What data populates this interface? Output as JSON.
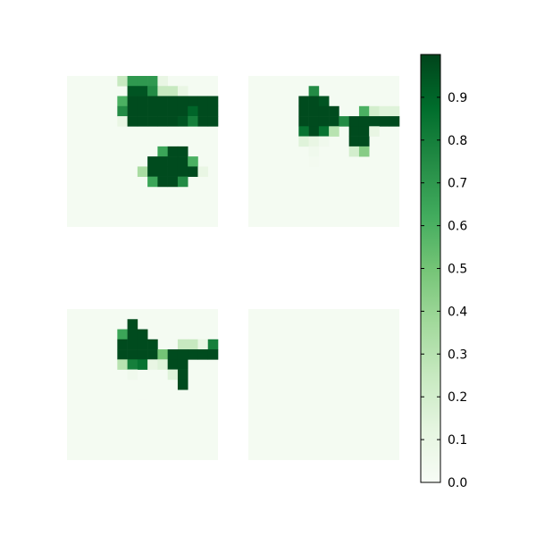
{
  "chart_data": {
    "type": "heatmap",
    "colormap": "Greens",
    "colorbar": {
      "vmin": 0.0,
      "vmax": 1.0,
      "tick_labels": [
        "0.0",
        "0.1",
        "0.2",
        "0.3",
        "0.4",
        "0.5",
        "0.6",
        "0.7",
        "0.8",
        "0.9"
      ]
    },
    "background_value": 0.02,
    "panels": [
      {
        "name": "top-left",
        "cells": [
          [
            0,
            5,
            0.25
          ],
          [
            0,
            6,
            0.7
          ],
          [
            0,
            7,
            0.7
          ],
          [
            0,
            8,
            0.7
          ],
          [
            0,
            9,
            0.1
          ],
          [
            1,
            6,
            0.95
          ],
          [
            1,
            7,
            0.95
          ],
          [
            1,
            8,
            0.75
          ],
          [
            1,
            9,
            0.25
          ],
          [
            1,
            10,
            0.25
          ],
          [
            1,
            11,
            0.1
          ],
          [
            2,
            5,
            0.6
          ],
          [
            2,
            6,
            0.98
          ],
          [
            2,
            7,
            0.98
          ],
          [
            2,
            8,
            0.98
          ],
          [
            2,
            9,
            0.98
          ],
          [
            2,
            10,
            0.98
          ],
          [
            2,
            11,
            0.98
          ],
          [
            2,
            12,
            0.98
          ],
          [
            2,
            13,
            0.98
          ],
          [
            2,
            14,
            0.98
          ],
          [
            3,
            5,
            0.75
          ],
          [
            3,
            6,
            0.98
          ],
          [
            3,
            7,
            0.98
          ],
          [
            3,
            8,
            0.98
          ],
          [
            3,
            9,
            0.98
          ],
          [
            3,
            10,
            0.98
          ],
          [
            3,
            11,
            0.98
          ],
          [
            3,
            12,
            0.9
          ],
          [
            3,
            13,
            0.98
          ],
          [
            3,
            14,
            0.98
          ],
          [
            4,
            5,
            0.1
          ],
          [
            4,
            6,
            0.98
          ],
          [
            4,
            7,
            0.98
          ],
          [
            4,
            8,
            0.98
          ],
          [
            4,
            9,
            0.98
          ],
          [
            4,
            10,
            0.98
          ],
          [
            4,
            11,
            0.95
          ],
          [
            4,
            12,
            0.8
          ],
          [
            4,
            13,
            0.98
          ],
          [
            4,
            14,
            0.98
          ],
          [
            7,
            9,
            0.65
          ],
          [
            7,
            10,
            0.98
          ],
          [
            7,
            11,
            0.98
          ],
          [
            8,
            8,
            0.98
          ],
          [
            8,
            9,
            0.98
          ],
          [
            8,
            10,
            0.98
          ],
          [
            8,
            11,
            0.98
          ],
          [
            8,
            12,
            0.6
          ],
          [
            9,
            7,
            0.35
          ],
          [
            9,
            8,
            0.98
          ],
          [
            9,
            9,
            0.98
          ],
          [
            9,
            10,
            0.98
          ],
          [
            9,
            11,
            0.98
          ],
          [
            9,
            12,
            0.98
          ],
          [
            9,
            13,
            0.1
          ],
          [
            10,
            8,
            0.65
          ],
          [
            10,
            9,
            0.98
          ],
          [
            10,
            10,
            0.98
          ],
          [
            10,
            11,
            0.75
          ]
        ]
      },
      {
        "name": "top-right",
        "cells": [
          [
            1,
            6,
            0.75
          ],
          [
            2,
            5,
            0.98
          ],
          [
            2,
            6,
            0.98
          ],
          [
            2,
            7,
            0.95
          ],
          [
            3,
            5,
            0.98
          ],
          [
            3,
            6,
            0.98
          ],
          [
            3,
            7,
            0.98
          ],
          [
            3,
            8,
            0.98
          ],
          [
            3,
            11,
            0.6
          ],
          [
            3,
            12,
            0.2
          ],
          [
            3,
            13,
            0.15
          ],
          [
            3,
            14,
            0.15
          ],
          [
            4,
            5,
            0.98
          ],
          [
            4,
            6,
            0.98
          ],
          [
            4,
            7,
            0.98
          ],
          [
            4,
            8,
            0.98
          ],
          [
            4,
            9,
            0.75
          ],
          [
            4,
            10,
            0.98
          ],
          [
            4,
            11,
            0.98
          ],
          [
            4,
            12,
            0.98
          ],
          [
            4,
            13,
            0.98
          ],
          [
            4,
            14,
            0.98
          ],
          [
            5,
            5,
            0.85
          ],
          [
            5,
            6,
            0.98
          ],
          [
            5,
            7,
            0.85
          ],
          [
            5,
            8,
            0.3
          ],
          [
            5,
            10,
            0.98
          ],
          [
            5,
            11,
            0.98
          ],
          [
            5,
            12,
            0.1
          ],
          [
            6,
            5,
            0.15
          ],
          [
            6,
            6,
            0.1
          ],
          [
            6,
            7,
            0.05
          ],
          [
            6,
            10,
            0.98
          ],
          [
            6,
            11,
            0.98
          ],
          [
            7,
            6,
            0.05
          ],
          [
            7,
            10,
            0.2
          ],
          [
            7,
            11,
            0.45
          ],
          [
            8,
            6,
            0.03
          ]
        ]
      },
      {
        "name": "bottom-left",
        "cells": [
          [
            1,
            6,
            0.98
          ],
          [
            2,
            5,
            0.65
          ],
          [
            2,
            6,
            0.98
          ],
          [
            2,
            7,
            0.98
          ],
          [
            3,
            5,
            0.98
          ],
          [
            3,
            6,
            0.98
          ],
          [
            3,
            7,
            0.98
          ],
          [
            3,
            8,
            0.98
          ],
          [
            3,
            11,
            0.25
          ],
          [
            3,
            12,
            0.25
          ],
          [
            3,
            13,
            0.1
          ],
          [
            3,
            14,
            0.8
          ],
          [
            4,
            5,
            0.98
          ],
          [
            4,
            6,
            0.98
          ],
          [
            4,
            7,
            0.98
          ],
          [
            4,
            8,
            0.98
          ],
          [
            4,
            9,
            0.5
          ],
          [
            4,
            10,
            0.98
          ],
          [
            4,
            11,
            0.98
          ],
          [
            4,
            12,
            0.98
          ],
          [
            4,
            13,
            0.98
          ],
          [
            4,
            14,
            0.98
          ],
          [
            5,
            5,
            0.3
          ],
          [
            5,
            6,
            0.8
          ],
          [
            5,
            7,
            0.85
          ],
          [
            5,
            8,
            0.1
          ],
          [
            5,
            9,
            0.15
          ],
          [
            5,
            10,
            0.98
          ],
          [
            5,
            11,
            0.98
          ],
          [
            6,
            6,
            0.05
          ],
          [
            6,
            10,
            0.15
          ],
          [
            6,
            11,
            0.98
          ],
          [
            7,
            11,
            0.98
          ],
          [
            8,
            7,
            0.02
          ]
        ]
      },
      {
        "name": "bottom-right",
        "cells": []
      }
    ]
  }
}
